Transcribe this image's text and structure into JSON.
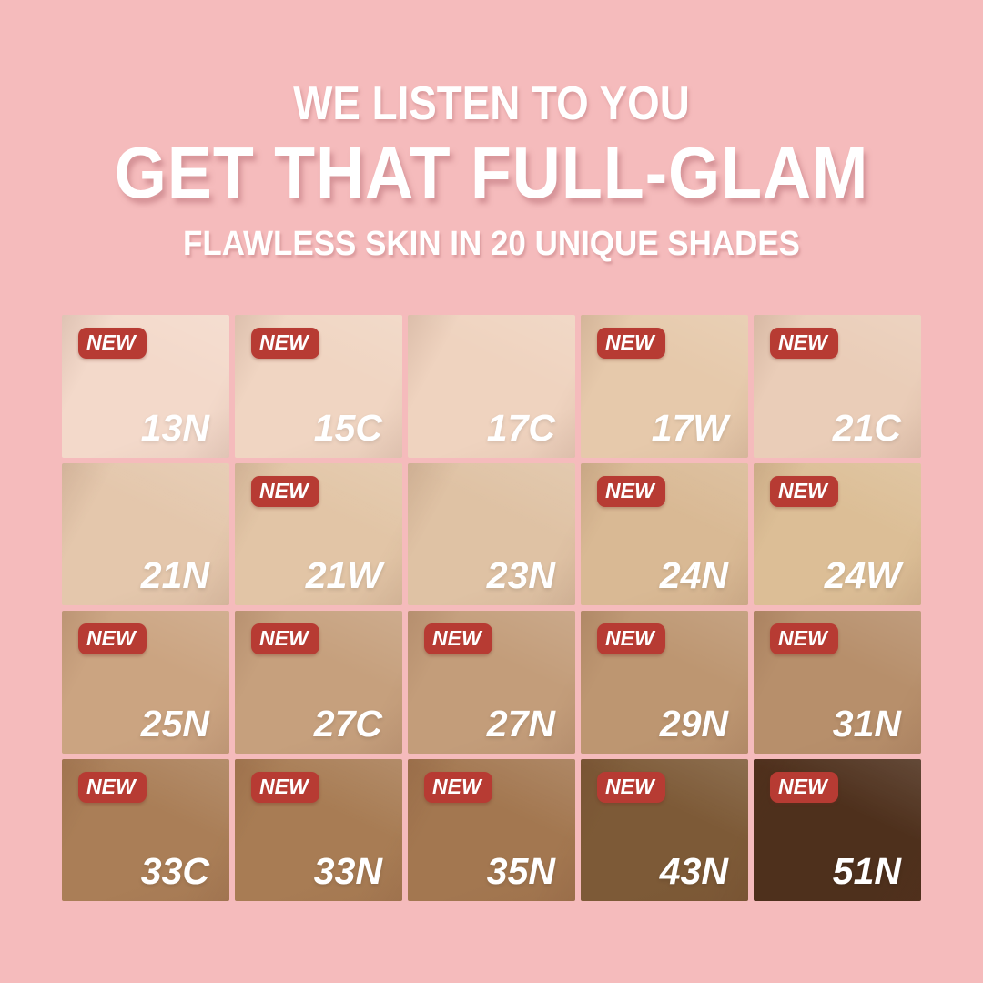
{
  "header": {
    "tagline": "WE LISTEN TO YOU",
    "title": "GET THAT FULL-GLAM",
    "subtitle": "FLAWLESS SKIN IN 20 UNIQUE SHADES"
  },
  "badge_label": "NEW",
  "colors": {
    "background": "#F5BBBC",
    "badge_red": "#B73B33",
    "headline_white": "#FFFFFF"
  },
  "shade_grid": {
    "columns": 5,
    "rows": 4,
    "shade_count": 20,
    "shades": [
      {
        "label": "13N",
        "color": "#F3D9CA",
        "is_new": true
      },
      {
        "label": "15C",
        "color": "#F0D5C2",
        "is_new": true
      },
      {
        "label": "17C",
        "color": "#EFD3BF",
        "is_new": false
      },
      {
        "label": "17W",
        "color": "#E6C9AB",
        "is_new": true
      },
      {
        "label": "21C",
        "color": "#EACDB8",
        "is_new": true
      },
      {
        "label": "21N",
        "color": "#E4C7AC",
        "is_new": false
      },
      {
        "label": "21W",
        "color": "#E2C5A6",
        "is_new": true
      },
      {
        "label": "23N",
        "color": "#DFC2A4",
        "is_new": false
      },
      {
        "label": "24N",
        "color": "#D9B994",
        "is_new": true
      },
      {
        "label": "24W",
        "color": "#DCBE96",
        "is_new": true
      },
      {
        "label": "25N",
        "color": "#CBA481",
        "is_new": true
      },
      {
        "label": "27C",
        "color": "#C6A07D",
        "is_new": true
      },
      {
        "label": "27N",
        "color": "#C39D7A",
        "is_new": true
      },
      {
        "label": "29N",
        "color": "#BD9671",
        "is_new": true
      },
      {
        "label": "31N",
        "color": "#B78F6B",
        "is_new": true
      },
      {
        "label": "33C",
        "color": "#AA7E57",
        "is_new": true
      },
      {
        "label": "33N",
        "color": "#A87C54",
        "is_new": true
      },
      {
        "label": "35N",
        "color": "#A37750",
        "is_new": true
      },
      {
        "label": "43N",
        "color": "#7D5A37",
        "is_new": true
      },
      {
        "label": "51N",
        "color": "#4E301C",
        "is_new": true
      }
    ]
  }
}
